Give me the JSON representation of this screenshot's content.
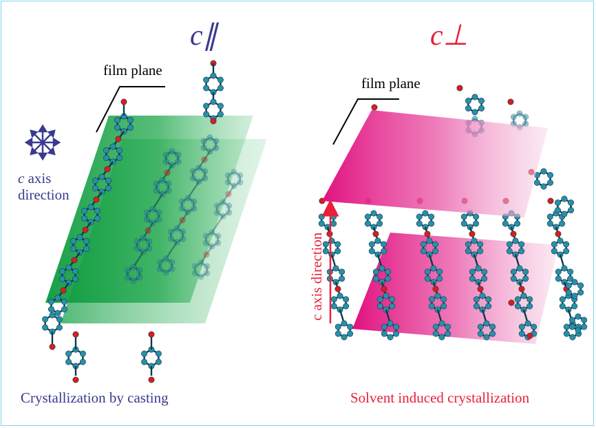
{
  "left_panel": {
    "heading": "c∥",
    "film_label": "film plane",
    "axis_label_italic": "c",
    "axis_label_rest": " axis",
    "axis_label_line2": "direction",
    "caption": "Crystallization by casting",
    "plane_color": "#0a9a3c",
    "text_color": "#3a3a8f"
  },
  "right_panel": {
    "heading": "c⊥",
    "film_label": "film plane",
    "axis_label": "c axis direction",
    "caption": "Solvent induced crystallization",
    "plane_color": "#e0117f",
    "text_color": "#e8203a"
  },
  "molecule_colors": {
    "carbon": "#2a8fa8",
    "oxygen": "#d81e1e"
  },
  "icons": [
    "star-arrows-icon",
    "up-arrow-icon"
  ]
}
